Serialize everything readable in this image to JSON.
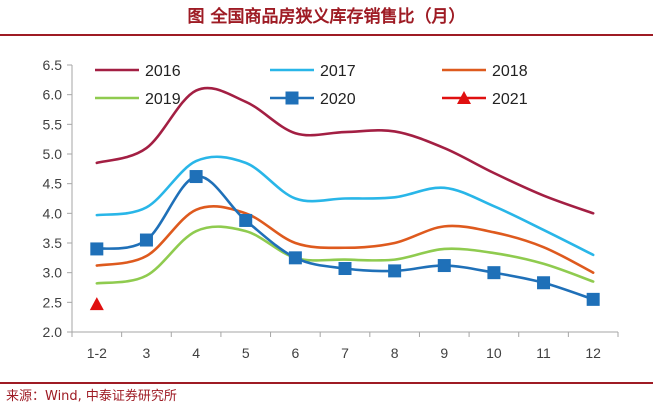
{
  "title": "图 全国商品房狭义库存销售比（月）",
  "source": "来源：Wind, 中泰证券研究所",
  "colors": {
    "title": "#9e1b24",
    "axis": "#a6a6a6",
    "tick_text": "#404040"
  },
  "chart_data": {
    "type": "line",
    "title": "图 全国商品房狭义库存销售比（月）",
    "xlabel": "",
    "ylabel": "",
    "categories": [
      "1-2",
      "3",
      "4",
      "5",
      "6",
      "7",
      "8",
      "9",
      "10",
      "11",
      "12"
    ],
    "ylim": [
      2.0,
      6.5
    ],
    "yticks": [
      "2.0",
      "2.5",
      "3.0",
      "3.5",
      "4.0",
      "4.5",
      "5.0",
      "5.5",
      "6.0",
      "6.5"
    ],
    "grid": false,
    "legend_position": "top",
    "series": [
      {
        "name": "2016",
        "color": "#a31f43",
        "marker": "none",
        "smooth": true,
        "values": [
          4.85,
          5.1,
          6.07,
          5.88,
          5.35,
          5.37,
          5.38,
          5.1,
          4.68,
          4.3,
          4.0
        ]
      },
      {
        "name": "2017",
        "color": "#29b6e8",
        "marker": "none",
        "smooth": true,
        "values": [
          3.97,
          4.1,
          4.88,
          4.85,
          4.25,
          4.25,
          4.27,
          4.43,
          4.12,
          3.72,
          3.3
        ]
      },
      {
        "name": "2018",
        "color": "#de5a1e",
        "marker": "none",
        "smooth": true,
        "values": [
          3.12,
          3.28,
          4.06,
          4.0,
          3.5,
          3.42,
          3.5,
          3.78,
          3.68,
          3.43,
          3.0
        ]
      },
      {
        "name": "2019",
        "color": "#8fcb4f",
        "marker": "none",
        "smooth": true,
        "values": [
          2.82,
          2.95,
          3.7,
          3.7,
          3.25,
          3.22,
          3.22,
          3.4,
          3.33,
          3.15,
          2.85
        ]
      },
      {
        "name": "2020",
        "color": "#1f70b8",
        "marker": "square",
        "smooth": true,
        "values": [
          3.4,
          3.55,
          4.62,
          3.88,
          3.25,
          3.07,
          3.03,
          3.12,
          3.0,
          2.83,
          2.55
        ]
      },
      {
        "name": "2021",
        "color": "#e01010",
        "marker": "triangle",
        "smooth": false,
        "values": [
          2.47,
          null,
          null,
          null,
          null,
          null,
          null,
          null,
          null,
          null,
          null
        ]
      }
    ]
  }
}
